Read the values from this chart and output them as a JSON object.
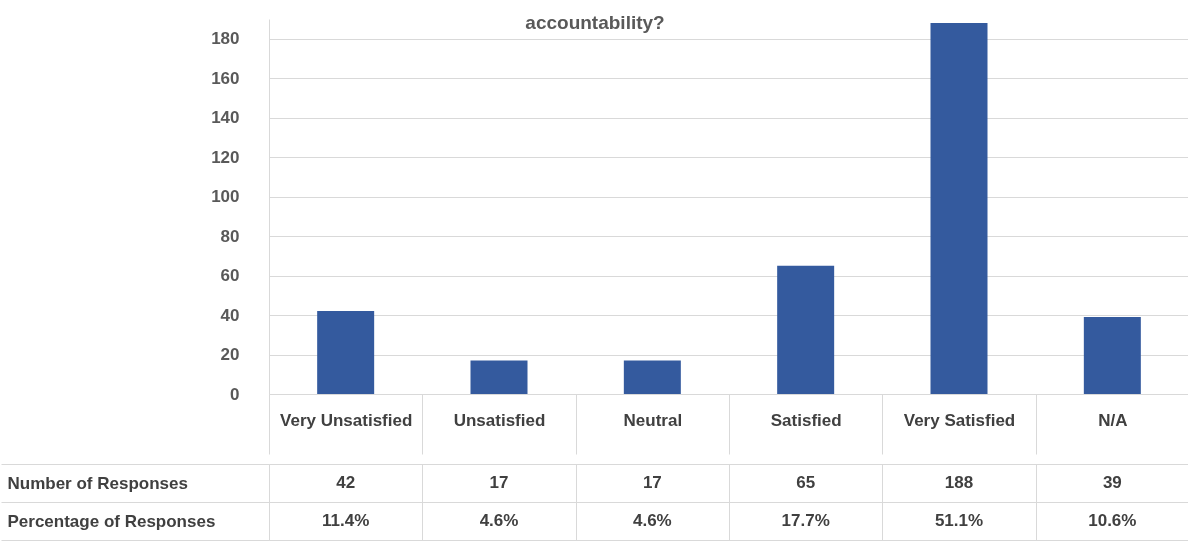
{
  "chart_data": {
    "type": "bar",
    "title": "accountability?",
    "categories": [
      "Very Unsatisfied",
      "Unsatisfied",
      "Neutral",
      "Satisfied",
      "Very Satisfied",
      "N/A"
    ],
    "series": [
      {
        "name": "Number of Responses",
        "color": "#345a9e",
        "values": [
          42,
          17,
          17,
          65,
          188,
          39
        ]
      }
    ],
    "annotations": [
      "Percentage of Responses",
      "11.4%",
      "4.6%",
      "4.6%",
      "17.7%",
      "51.1%",
      "10.6%"
    ],
    "ylim": [
      0,
      190
    ],
    "yticks": [
      0,
      20,
      40,
      60,
      80,
      100,
      120,
      140,
      160,
      180
    ],
    "grid": "y",
    "data_labels": true
  }
}
